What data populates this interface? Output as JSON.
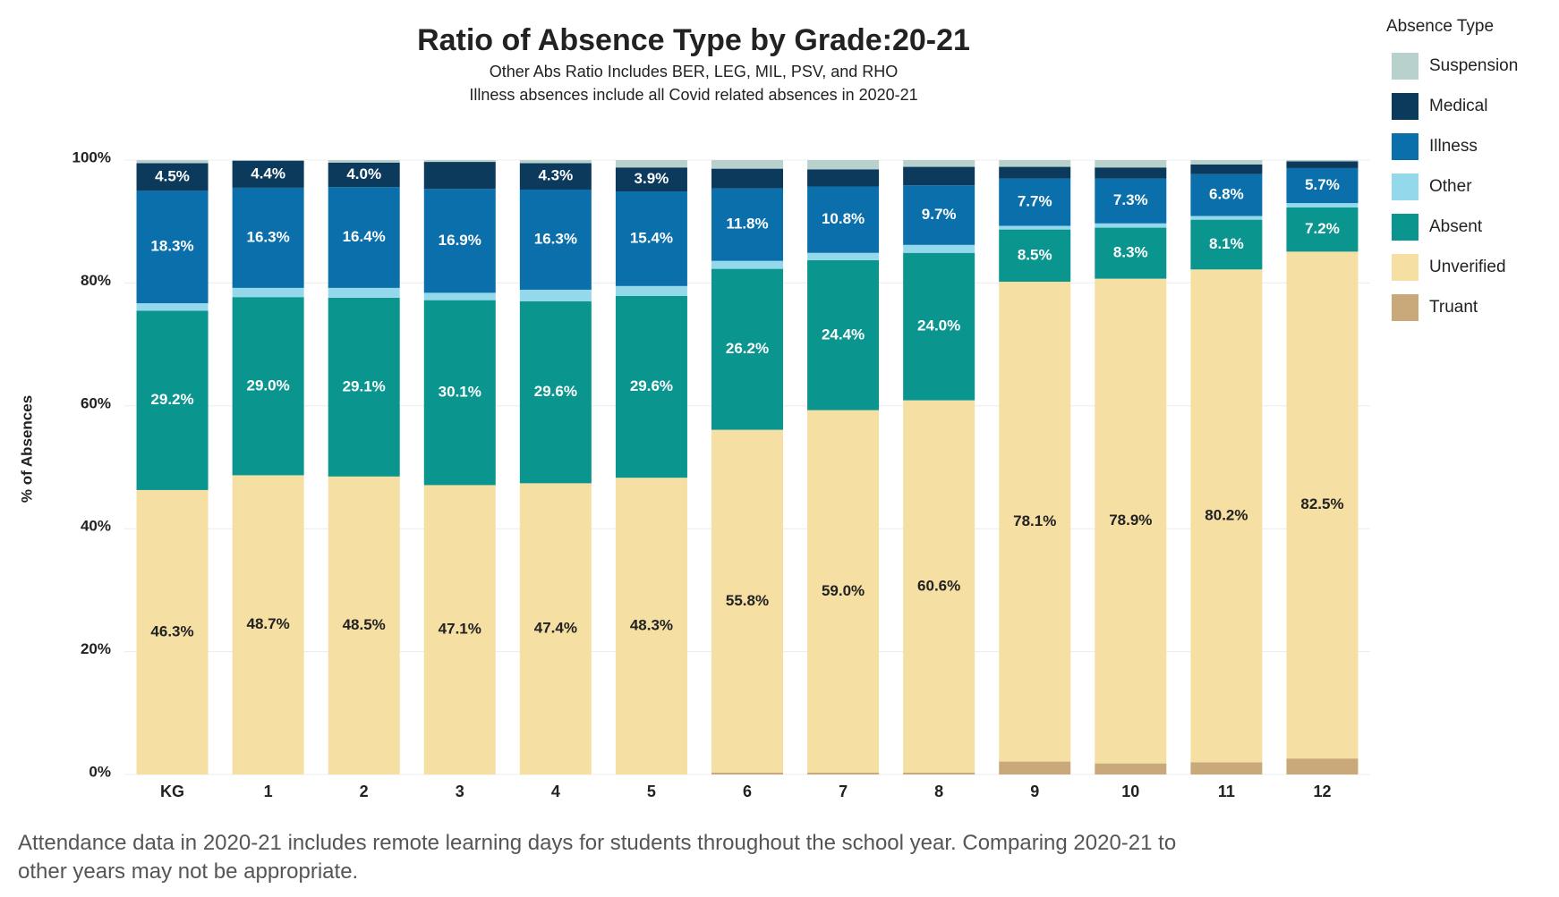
{
  "chart_data": {
    "type": "stacked_bar",
    "title": "Ratio of Absence Type by Grade:20-21",
    "subtitle": [
      "Other Abs Ratio Includes BER, LEG, MIL, PSV, and RHO",
      "Illness absences include all Covid related absences in 2020-21"
    ],
    "y_label": "% of Absences",
    "legend_title": "Absence Type",
    "footnote": "Attendance data in 2020-21 includes remote learning days for students throughout the school year. Comparing 2020-21 to other years may not be appropriate.",
    "categories": [
      "KG",
      "1",
      "2",
      "3",
      "4",
      "5",
      "6",
      "7",
      "8",
      "9",
      "10",
      "11",
      "12"
    ],
    "ylim": [
      0,
      100
    ],
    "yticks": [
      {
        "value": 0,
        "label": "0%"
      },
      {
        "value": 20,
        "label": "20%"
      },
      {
        "value": 40,
        "label": "40%"
      },
      {
        "value": 60,
        "label": "60%"
      },
      {
        "value": 80,
        "label": "80%"
      },
      {
        "value": 100,
        "label": "100%"
      }
    ],
    "grid": true,
    "legend": "right",
    "series": [
      {
        "name": "Truant",
        "color": "#c9a97a",
        "values": [
          0,
          0,
          0,
          0,
          0,
          0,
          0.3,
          0.3,
          0.3,
          2.1,
          1.8,
          2.0,
          2.6
        ]
      },
      {
        "name": "Unverified",
        "color": "#f5dfa3",
        "values": [
          46.3,
          48.7,
          48.5,
          47.1,
          47.4,
          48.3,
          55.8,
          59.0,
          60.6,
          78.1,
          78.9,
          80.2,
          82.5
        ],
        "value_labels": [
          "46.3%",
          "48.7%",
          "48.5%",
          "47.1%",
          "47.4%",
          "48.3%",
          "55.8%",
          "59.0%",
          "60.6%",
          "78.1%",
          "78.9%",
          "80.2%",
          "82.5%"
        ]
      },
      {
        "name": "Absent",
        "color": "#0a958f",
        "values": [
          29.2,
          29.0,
          29.1,
          30.1,
          29.6,
          29.6,
          26.2,
          24.4,
          24.0,
          8.5,
          8.3,
          8.1,
          7.2
        ],
        "value_labels": [
          "29.2%",
          "29.0%",
          "29.1%",
          "30.1%",
          "29.6%",
          "29.6%",
          "26.2%",
          "24.4%",
          "24.0%",
          "8.5%",
          "8.3%",
          "8.1%",
          "7.2%"
        ]
      },
      {
        "name": "Other",
        "color": "#94d8ec",
        "values": [
          1.2,
          1.5,
          1.6,
          1.2,
          1.9,
          1.6,
          1.3,
          1.2,
          1.3,
          0.6,
          0.7,
          0.6,
          0.7
        ]
      },
      {
        "name": "Illness",
        "color": "#0a6fab",
        "values": [
          18.3,
          16.3,
          16.4,
          16.9,
          16.3,
          15.4,
          11.8,
          10.8,
          9.7,
          7.7,
          7.3,
          6.8,
          5.7
        ],
        "value_labels": [
          "18.3%",
          "16.3%",
          "16.4%",
          "16.9%",
          "16.3%",
          "15.4%",
          "11.8%",
          "10.8%",
          "9.7%",
          "7.7%",
          "7.3%",
          "6.8%",
          "5.7%"
        ]
      },
      {
        "name": "Medical",
        "color": "#0c3a5c",
        "values": [
          4.5,
          4.4,
          4.0,
          4.4,
          4.3,
          3.9,
          3.2,
          2.8,
          3.0,
          1.9,
          1.8,
          1.6,
          1.1
        ],
        "value_labels": [
          "4.5%",
          "4.4%",
          "4.0%",
          null,
          "4.3%",
          "3.9%",
          null,
          null,
          null,
          null,
          null,
          null,
          null
        ]
      },
      {
        "name": "Suspension",
        "color": "#b9d1cc",
        "values": [
          0.5,
          0.1,
          0.4,
          0.3,
          0.5,
          1.2,
          1.4,
          1.5,
          1.1,
          1.1,
          1.2,
          0.7,
          0.2
        ]
      }
    ]
  }
}
